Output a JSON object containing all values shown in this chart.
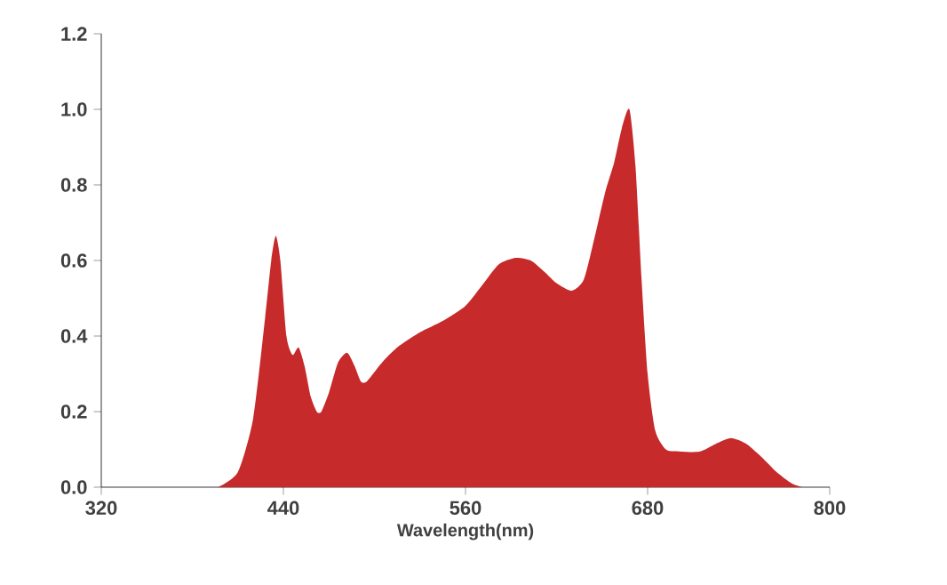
{
  "chart_data": {
    "type": "area",
    "xlabel": "Wavelength(nm)",
    "x": [
      397,
      410,
      420,
      428,
      432,
      435,
      438,
      442,
      446,
      450,
      454,
      458,
      462,
      465,
      470,
      476,
      482,
      487,
      491,
      495,
      505,
      515,
      530,
      545,
      560,
      572,
      582,
      593,
      603,
      612,
      620,
      630,
      638,
      645,
      652,
      658,
      663,
      668,
      672,
      676,
      680,
      685,
      692,
      700,
      714,
      725,
      735,
      745,
      755,
      765,
      775,
      782
    ],
    "series": [
      {
        "color": "#c62a2a",
        "values": [
          0,
          0.04,
          0.18,
          0.45,
          0.6,
          0.665,
          0.6,
          0.4,
          0.35,
          0.37,
          0.32,
          0.24,
          0.2,
          0.2,
          0.25,
          0.33,
          0.356,
          0.32,
          0.28,
          0.28,
          0.33,
          0.37,
          0.41,
          0.44,
          0.48,
          0.54,
          0.59,
          0.607,
          0.6,
          0.57,
          0.54,
          0.52,
          0.55,
          0.66,
          0.78,
          0.86,
          0.95,
          1.0,
          0.85,
          0.55,
          0.3,
          0.15,
          0.1,
          0.095,
          0.094,
          0.115,
          0.13,
          0.115,
          0.08,
          0.04,
          0.01,
          0
        ]
      }
    ],
    "xlim": [
      320,
      800
    ],
    "xticks": [
      320,
      440,
      560,
      680,
      800
    ],
    "ylim": [
      0,
      1.2
    ],
    "yticks": [
      {
        "value": 0,
        "label": "0.0"
      },
      0.2,
      0.4,
      0.6,
      0.8,
      {
        "value": 1,
        "label": "1.0"
      },
      1.2
    ],
    "grid": false
  }
}
